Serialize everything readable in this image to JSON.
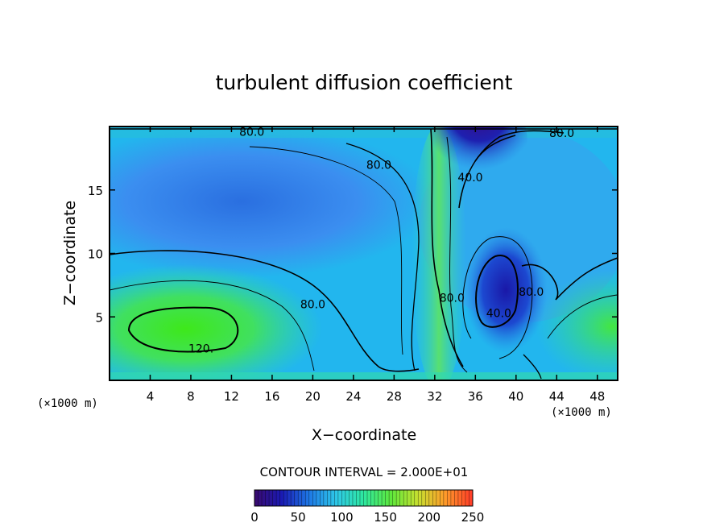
{
  "chart_data": {
    "type": "heatmap",
    "title": "turbulent diffusion coefficient",
    "xlabel": "X−coordinate",
    "ylabel": "Z−coordinate",
    "x_unit_left": "(×1000 m)",
    "x_unit_right": "(×1000 m)",
    "xlim": [
      0,
      50
    ],
    "ylim": [
      0,
      20
    ],
    "xticks": [
      4,
      8,
      12,
      16,
      20,
      24,
      28,
      32,
      36,
      40,
      44,
      48
    ],
    "yticks": [
      5,
      10,
      15
    ],
    "contour_interval_text": "CONTOUR INTERVAL = 2.000E+01",
    "contour_labels": [
      {
        "text": "80.0",
        "x": 14,
        "y": 19.6
      },
      {
        "text": "80.0",
        "x": 26.5,
        "y": 17
      },
      {
        "text": "40.0",
        "x": 35.5,
        "y": 16
      },
      {
        "text": "80.0",
        "x": 44.5,
        "y": 19.5
      },
      {
        "text": "80.0",
        "x": 20,
        "y": 6
      },
      {
        "text": "80.0",
        "x": 33.7,
        "y": 6.5
      },
      {
        "text": "40.0",
        "x": 38.3,
        "y": 5.3
      },
      {
        "text": "80.0",
        "x": 41.5,
        "y": 7
      },
      {
        "text": "120.",
        "x": 9,
        "y": 2.5
      }
    ],
    "colorbar": {
      "min": 0,
      "max": 250,
      "ticks": [
        "0",
        "50",
        "100",
        "150",
        "200",
        "250"
      ],
      "colors": [
        "#3a0a6e",
        "#1a1ab4",
        "#1e78e6",
        "#2ec8e8",
        "#2ee8a0",
        "#5ee83c",
        "#c8e030",
        "#ff9a2a",
        "#ff3a28"
      ]
    },
    "grid": false,
    "legend": "none"
  }
}
